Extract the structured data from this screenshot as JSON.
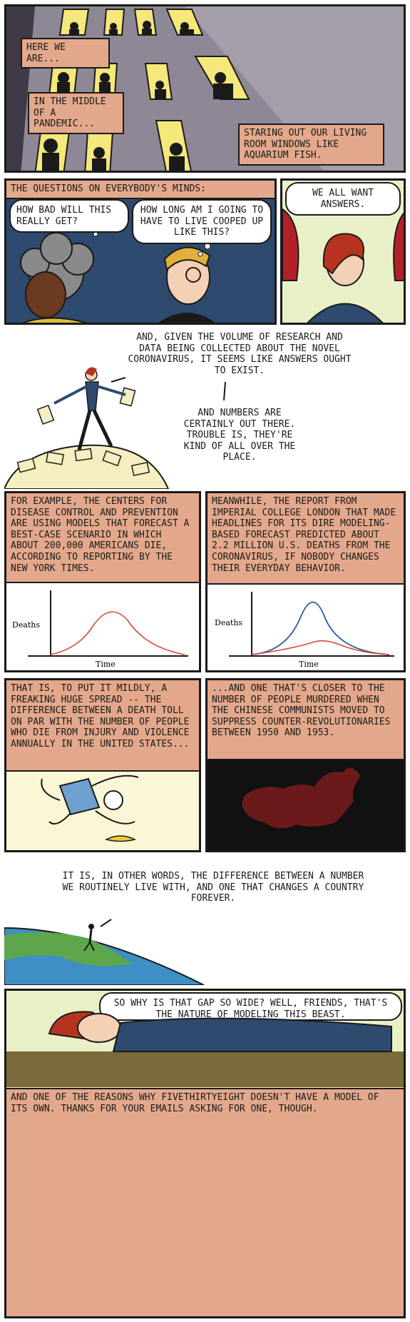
{
  "comic": {
    "panel1": {
      "cap1": "HERE WE ARE...",
      "cap2": "IN THE MIDDLE OF A PANDEMIC...",
      "cap3": "STARING OUT OUR LIVING ROOM WINDOWS LIKE AQUARIUM FISH."
    },
    "panel2": {
      "cap": "THE QUESTIONS ON EVERYBODY'S MINDS:",
      "bubble_left": "HOW BAD WILL THIS REALLY GET?",
      "bubble_right": "HOW LONG AM I GOING TO HAVE TO LIVE COOPED UP LIKE THIS?"
    },
    "panel3": {
      "bubble": "WE ALL WANT ANSWERS."
    },
    "panel4": {
      "text1": "AND, GIVEN THE VOLUME OF RESEARCH AND DATA BEING COLLECTED ABOUT THE NOVEL CORONAVIRUS, IT SEEMS LIKE ANSWERS OUGHT TO EXIST.",
      "text2": "AND NUMBERS ARE CERTAINLY OUT THERE. TROUBLE IS, THEY'RE KIND OF ALL OVER THE PLACE."
    },
    "panel5": {
      "cap": "FOR EXAMPLE, THE CENTERS FOR DISEASE CONTROL AND PREVENTION ARE USING MODELS THAT FORECAST A BEST-CASE SCENARIO IN WHICH ABOUT 200,000 AMERICANS DIE, ACCORDING TO REPORTING BY THE NEW YORK TIMES.",
      "ylabel": "Deaths",
      "xlabel": "Time"
    },
    "panel6": {
      "cap": "MEANWHILE, THE REPORT FROM IMPERIAL COLLEGE LONDON THAT MADE HEADLINES FOR ITS DIRE MODELING-BASED FORECAST PREDICTED ABOUT 2.2 MILLION U.S. DEATHS FROM THE CORONAVIRUS, IF NOBODY CHANGES THEIR EVERYDAY BEHAVIOR.",
      "ylabel": "Deaths",
      "xlabel": "Time"
    },
    "panel7": {
      "cap": "THAT IS, TO PUT IT MILDLY, A FREAKING HUGE SPREAD -- THE DIFFERENCE BETWEEN A DEATH TOLL ON PAR WITH THE NUMBER OF PEOPLE WHO DIE FROM INJURY AND VIOLENCE ANNUALLY IN THE UNITED STATES..."
    },
    "panel8": {
      "cap": "...AND ONE THAT'S CLOSER TO THE NUMBER OF PEOPLE MURDERED WHEN THE CHINESE COMMUNISTS MOVED TO SUPPRESS COUNTER-REVOLUTIONARIES BETWEEN 1950 AND 1953."
    },
    "panel9": {
      "text": "IT IS, IN OTHER WORDS, THE DIFFERENCE BETWEEN A NUMBER WE ROUTINELY LIVE WITH, AND ONE THAT CHANGES A COUNTRY FOREVER."
    },
    "panel10": {
      "bubble": "SO WHY IS THAT GAP SO WIDE? WELL, FRIENDS, THAT'S THE NATURE OF MODELING THIS BEAST.",
      "cap": "AND ONE OF THE REASONS WHY FIVETHIRTYEIGHT DOESN'T HAVE A MODEL OF ITS OWN. THANKS FOR YOUR EMAILS ASKING FOR ONE, THOUGH."
    }
  },
  "colors": {
    "caption": "#e3a88b",
    "building": "#8e8896",
    "window": "#f5e77a",
    "navy": "#2e4a6e",
    "red_curve": "#d94a3a",
    "blue_curve": "#2e5a9e",
    "china": "#6b1a1a"
  }
}
